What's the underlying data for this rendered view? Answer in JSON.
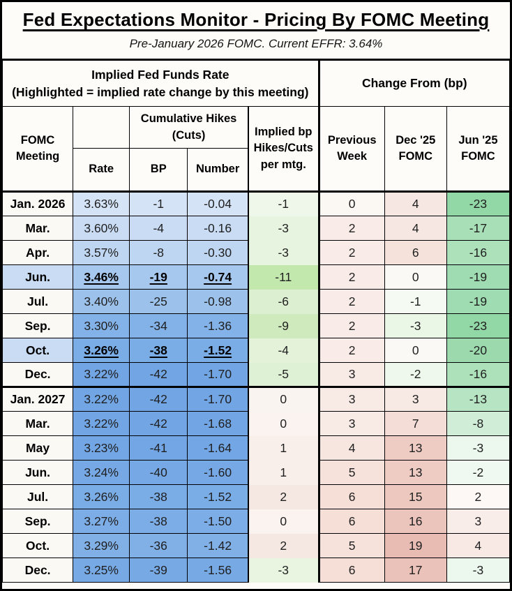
{
  "title": "Fed Expectations Monitor - Pricing By FOMC Meeting",
  "subtitle": "Pre-January 2026 FOMC. Current EFFR: 3.64%",
  "header": {
    "left_group": "Implied Fed Funds Rate\n(Highlighted = implied rate change by this meeting)",
    "right_group": "Change From (bp)",
    "col_fomc": "FOMC\nMeeting",
    "col_cumulative": "Cumulative Hikes\n(Cuts)",
    "col_rate": "Rate",
    "col_bp": "BP",
    "col_number": "Number",
    "col_implied": "Implied bp\nHikes/Cuts\nper mtg.",
    "col_prev_week": "Previous\nWeek",
    "col_dec25": "Dec '25\nFOMC",
    "col_jun25": "Jun '25\nFOMC"
  },
  "rows": [
    {
      "meeting": "Jan. 2026",
      "rate": "3.63%",
      "bp": "-1",
      "number": "-0.04",
      "implied": "-1",
      "prev_week": "0",
      "dec25": "4",
      "jun25": "-23",
      "highlight": false,
      "year_start": false,
      "colors": {
        "meeting": "#fbf9f4",
        "rate": "#d4e3f6",
        "implied": "#eff7ea",
        "prev": "#fbf8f4",
        "dec25": "#f6e7e2",
        "jun25": "#92d7a6"
      }
    },
    {
      "meeting": "Mar.",
      "rate": "3.60%",
      "bp": "-4",
      "number": "-0.16",
      "implied": "-3",
      "prev_week": "2",
      "dec25": "4",
      "jun25": "-17",
      "highlight": false,
      "year_start": false,
      "colors": {
        "meeting": "#fbf9f4",
        "rate": "#c9dcf4",
        "implied": "#e7f4e0",
        "prev": "#f9ece8",
        "dec25": "#f6e7e2",
        "jun25": "#a8dfb7"
      }
    },
    {
      "meeting": "Apr.",
      "rate": "3.57%",
      "bp": "-8",
      "number": "-0.30",
      "implied": "-3",
      "prev_week": "2",
      "dec25": "6",
      "jun25": "-16",
      "highlight": false,
      "year_start": false,
      "colors": {
        "meeting": "#fbf9f4",
        "rate": "#bfd6f2",
        "implied": "#e7f4e0",
        "prev": "#f9ece8",
        "dec25": "#f4e2db",
        "jun25": "#ace1ba"
      }
    },
    {
      "meeting": "Jun.",
      "rate": "3.46%",
      "bp": "-19",
      "number": "-0.74",
      "implied": "-11",
      "prev_week": "2",
      "dec25": "0",
      "jun25": "-19",
      "highlight": true,
      "year_start": false,
      "colors": {
        "meeting": "#c9dcf3",
        "rate": "#a6c8ee",
        "implied": "#c3e8ae",
        "prev": "#f9ece8",
        "dec25": "#fbf9f5",
        "jun25": "#9fdcb1"
      }
    },
    {
      "meeting": "Jul.",
      "rate": "3.40%",
      "bp": "-25",
      "number": "-0.98",
      "implied": "-6",
      "prev_week": "2",
      "dec25": "-1",
      "jun25": "-19",
      "highlight": false,
      "year_start": false,
      "colors": {
        "meeting": "#fbf9f4",
        "rate": "#9cc2ec",
        "implied": "#dcf0d1",
        "prev": "#f9ece8",
        "dec25": "#f5faf2",
        "jun25": "#9fdcb1"
      }
    },
    {
      "meeting": "Sep.",
      "rate": "3.30%",
      "bp": "-34",
      "number": "-1.36",
      "implied": "-9",
      "prev_week": "2",
      "dec25": "-3",
      "jun25": "-23",
      "highlight": false,
      "year_start": false,
      "colors": {
        "meeting": "#fbf9f4",
        "rate": "#83b2e8",
        "implied": "#cfeabd",
        "prev": "#f9ece8",
        "dec25": "#eaf6e6",
        "jun25": "#92d7a6"
      }
    },
    {
      "meeting": "Oct.",
      "rate": "3.26%",
      "bp": "-38",
      "number": "-1.52",
      "implied": "-4",
      "prev_week": "2",
      "dec25": "0",
      "jun25": "-20",
      "highlight": true,
      "year_start": false,
      "colors": {
        "meeting": "#c9dcf3",
        "rate": "#7aace6",
        "implied": "#e3f2d9",
        "prev": "#f9ece8",
        "dec25": "#fbf9f5",
        "jun25": "#9cdaae"
      }
    },
    {
      "meeting": "Dec.",
      "rate": "3.22%",
      "bp": "-42",
      "number": "-1.70",
      "implied": "-5",
      "prev_week": "3",
      "dec25": "-2",
      "jun25": "-16",
      "highlight": false,
      "year_start": false,
      "colors": {
        "meeting": "#fbf9f4",
        "rate": "#71a5e4",
        "implied": "#dff1d5",
        "prev": "#f8eae5",
        "dec25": "#eff8ec",
        "jun25": "#ace1ba"
      }
    },
    {
      "meeting": "Jan. 2027",
      "rate": "3.22%",
      "bp": "-42",
      "number": "-1.70",
      "implied": "0",
      "prev_week": "3",
      "dec25": "3",
      "jun25": "-13",
      "highlight": false,
      "year_start": true,
      "colors": {
        "meeting": "#fbf9f4",
        "rate": "#71a5e4",
        "implied": "#faf4f0",
        "prev": "#f8eae5",
        "dec25": "#f7e9e4",
        "jun25": "#b7e4c3"
      }
    },
    {
      "meeting": "Mar.",
      "rate": "3.22%",
      "bp": "-42",
      "number": "-1.68",
      "implied": "0",
      "prev_week": "3",
      "dec25": "7",
      "jun25": "-8",
      "highlight": false,
      "year_start": false,
      "colors": {
        "meeting": "#fbf9f4",
        "rate": "#71a5e4",
        "implied": "#faf3f0",
        "prev": "#f8eae5",
        "dec25": "#f3ddd6",
        "jun25": "#d0edd8"
      }
    },
    {
      "meeting": "May",
      "rate": "3.23%",
      "bp": "-41",
      "number": "-1.64",
      "implied": "1",
      "prev_week": "4",
      "dec25": "13",
      "jun25": "-3",
      "highlight": false,
      "year_start": false,
      "colors": {
        "meeting": "#fbf9f4",
        "rate": "#73a6e4",
        "implied": "#f8eeea",
        "prev": "#f7e6e0",
        "dec25": "#eeccc4",
        "jun25": "#ecf7ee"
      }
    },
    {
      "meeting": "Jun.",
      "rate": "3.24%",
      "bp": "-40",
      "number": "-1.60",
      "implied": "1",
      "prev_week": "5",
      "dec25": "13",
      "jun25": "-2",
      "highlight": false,
      "year_start": false,
      "colors": {
        "meeting": "#fbf9f4",
        "rate": "#76a8e5",
        "implied": "#f8eeea",
        "prev": "#f6e2db",
        "dec25": "#eeccc4",
        "jun25": "#eff8f1"
      }
    },
    {
      "meeting": "Jul.",
      "rate": "3.26%",
      "bp": "-38",
      "number": "-1.52",
      "implied": "2",
      "prev_week": "6",
      "dec25": "15",
      "jun25": "2",
      "highlight": false,
      "year_start": false,
      "colors": {
        "meeting": "#fbf9f4",
        "rate": "#7aace6",
        "implied": "#f5e7e1",
        "prev": "#f5dfd7",
        "dec25": "#ecc8bf",
        "jun25": "#fdf8f5"
      }
    },
    {
      "meeting": "Sep.",
      "rate": "3.27%",
      "bp": "-38",
      "number": "-1.50",
      "implied": "0",
      "prev_week": "6",
      "dec25": "16",
      "jun25": "3",
      "highlight": false,
      "year_start": false,
      "colors": {
        "meeting": "#fbf9f4",
        "rate": "#7dade6",
        "implied": "#faf3f0",
        "prev": "#f5dfd7",
        "dec25": "#ebc5bc",
        "jun25": "#f9edea"
      }
    },
    {
      "meeting": "Oct.",
      "rate": "3.29%",
      "bp": "-36",
      "number": "-1.42",
      "implied": "2",
      "prev_week": "5",
      "dec25": "19",
      "jun25": "4",
      "highlight": false,
      "year_start": false,
      "colors": {
        "meeting": "#fbf9f4",
        "rate": "#81b0e7",
        "implied": "#f5e7e1",
        "prev": "#f6e2db",
        "dec25": "#e8bcb2",
        "jun25": "#f8e9e5"
      }
    },
    {
      "meeting": "Dec.",
      "rate": "3.25%",
      "bp": "-39",
      "number": "-1.56",
      "implied": "-3",
      "prev_week": "6",
      "dec25": "17",
      "jun25": "-3",
      "highlight": false,
      "year_start": false,
      "colors": {
        "meeting": "#fbf9f4",
        "rate": "#77a9e5",
        "implied": "#e9f5e1",
        "prev": "#f5dfd7",
        "dec25": "#eac2b9",
        "jun25": "#ecf7ee"
      }
    }
  ],
  "chart_data": {
    "type": "table",
    "title": "Fed Expectations Monitor - Pricing By FOMC Meeting",
    "subtitle": "Pre-January 2026 FOMC. Current EFFR: 3.64%",
    "column_groups": [
      "Implied Fed Funds Rate (Highlighted = implied rate change by this meeting)",
      "Change From (bp)"
    ],
    "columns": [
      "FOMC Meeting",
      "Rate",
      "Cumulative Hikes (Cuts) BP",
      "Cumulative Hikes (Cuts) Number",
      "Implied bp Hikes/Cuts per mtg.",
      "Previous Week",
      "Dec '25 FOMC",
      "Jun '25 FOMC"
    ],
    "rows": [
      [
        "Jan. 2026",
        "3.63%",
        -1,
        -0.04,
        -1,
        0,
        4,
        -23
      ],
      [
        "Mar.",
        "3.60%",
        -4,
        -0.16,
        -3,
        2,
        4,
        -17
      ],
      [
        "Apr.",
        "3.57%",
        -8,
        -0.3,
        -3,
        2,
        6,
        -16
      ],
      [
        "Jun.",
        "3.46%",
        -19,
        -0.74,
        -11,
        2,
        0,
        -19
      ],
      [
        "Jul.",
        "3.40%",
        -25,
        -0.98,
        -6,
        2,
        -1,
        -19
      ],
      [
        "Sep.",
        "3.30%",
        -34,
        -1.36,
        -9,
        2,
        -3,
        -23
      ],
      [
        "Oct.",
        "3.26%",
        -38,
        -1.52,
        -4,
        2,
        0,
        -20
      ],
      [
        "Dec.",
        "3.22%",
        -42,
        -1.7,
        -5,
        3,
        -2,
        -16
      ],
      [
        "Jan. 2027",
        "3.22%",
        -42,
        -1.7,
        0,
        3,
        3,
        -13
      ],
      [
        "Mar.",
        "3.22%",
        -42,
        -1.68,
        0,
        3,
        7,
        -8
      ],
      [
        "May",
        "3.23%",
        -41,
        -1.64,
        1,
        4,
        13,
        -3
      ],
      [
        "Jun.",
        "3.24%",
        -40,
        -1.6,
        1,
        5,
        13,
        -2
      ],
      [
        "Jul.",
        "3.26%",
        -38,
        -1.52,
        2,
        6,
        15,
        2
      ],
      [
        "Sep.",
        "3.27%",
        -38,
        -1.5,
        0,
        6,
        16,
        3
      ],
      [
        "Oct.",
        "3.29%",
        -36,
        -1.42,
        2,
        5,
        19,
        4
      ],
      [
        "Dec.",
        "3.25%",
        -39,
        -1.56,
        -3,
        6,
        17,
        -3
      ]
    ],
    "highlighted_rows": [
      "Jun. 2026",
      "Oct. 2026"
    ],
    "colors": {
      "rate_scale_low": "#71a5e4",
      "rate_scale_high": "#d4e3f6",
      "negative_green": "#92d7a6",
      "positive_red": "#e8bcb2",
      "highlight_blue": "#c9dcf3"
    }
  }
}
